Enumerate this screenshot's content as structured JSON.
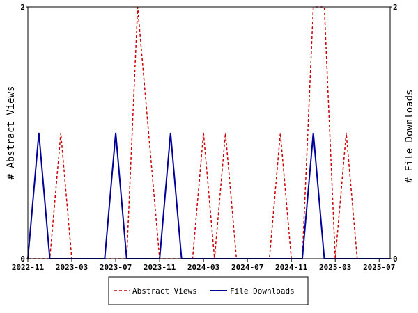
{
  "chart_data": {
    "type": "line",
    "x": [
      "2022-11",
      "2022-12",
      "2023-01",
      "2023-02",
      "2023-03",
      "2023-04",
      "2023-05",
      "2023-06",
      "2023-07",
      "2023-08",
      "2023-09",
      "2023-10",
      "2023-11",
      "2023-12",
      "2024-01",
      "2024-02",
      "2024-03",
      "2024-04",
      "2024-05",
      "2024-06",
      "2024-07",
      "2024-08",
      "2024-09",
      "2024-10",
      "2024-11",
      "2024-12",
      "2025-01",
      "2025-02",
      "2025-03",
      "2025-04",
      "2025-05",
      "2025-06",
      "2025-07",
      "2025-08"
    ],
    "x_ticks": [
      "2022-11",
      "2023-03",
      "2023-07",
      "2023-11",
      "2024-03",
      "2024-07",
      "2024-11",
      "2025-03",
      "2025-07"
    ],
    "series": [
      {
        "name": "Abstract Views",
        "color": "#cc0000",
        "style": "dashed",
        "axis": "left",
        "values": [
          0,
          0,
          0,
          1,
          0,
          0,
          0,
          0,
          0,
          0,
          2,
          1,
          0,
          0,
          0,
          0,
          1,
          0,
          1,
          0,
          0,
          0,
          0,
          1,
          0,
          0,
          2,
          2,
          0,
          1,
          0,
          0,
          0,
          0
        ]
      },
      {
        "name": "File Downloads",
        "color": "#000099",
        "style": "solid",
        "axis": "right",
        "values": [
          0,
          1,
          0,
          0,
          0,
          0,
          0,
          0,
          1,
          0,
          0,
          0,
          0,
          1,
          0,
          0,
          0,
          0,
          0,
          0,
          0,
          0,
          0,
          0,
          0,
          0,
          1,
          0,
          0,
          0,
          0,
          0,
          0,
          0
        ]
      }
    ],
    "ylabel": "# Abstract Views",
    "y2label": "# File Downloads",
    "ylim": [
      0,
      2
    ],
    "y_ticks": [
      "0",
      "2"
    ],
    "y2lim": [
      0,
      2
    ],
    "y2_ticks": [
      "0",
      "2"
    ],
    "grid": false,
    "legend_position": "bottom"
  }
}
